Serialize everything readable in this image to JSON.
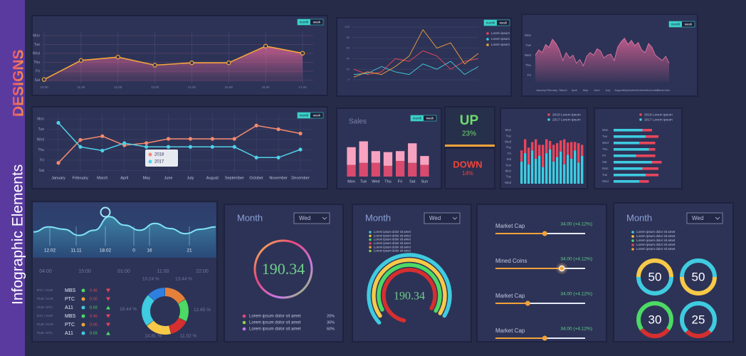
{
  "sidebar": {
    "title": "Infographic Elements",
    "subtitle": "DESIGNS"
  },
  "toggle": [
    "month",
    "week"
  ],
  "weekline": {
    "ylabels": [
      "Mon",
      "Tue",
      "Wed",
      "Thu",
      "Fri",
      "Sat"
    ],
    "xlabels": [
      "10.00",
      "11.00",
      "12.00",
      "13.00",
      "14.00",
      "15.00",
      "16.00",
      "17.00"
    ],
    "values": [
      5,
      45,
      52,
      35,
      40,
      40,
      75,
      60
    ],
    "ylim": [
      0,
      100
    ],
    "color": "#f5a63a"
  },
  "multiline": {
    "ylim": [
      0,
      100
    ],
    "yticks": [
      0,
      20,
      40,
      60,
      80,
      100
    ],
    "series": [
      {
        "name": "Lorem ipsum",
        "color": "#e8465c",
        "values": [
          20,
          10,
          15,
          40,
          35,
          55,
          45,
          20,
          35,
          40
        ]
      },
      {
        "name": "Lorem ipsum",
        "color": "#3fcbe0",
        "values": [
          10,
          12,
          25,
          15,
          10,
          30,
          20,
          35,
          10,
          25
        ]
      },
      {
        "name": "Lorem ipsum",
        "color": "#f2a23a",
        "values": [
          5,
          15,
          10,
          25,
          45,
          95,
          60,
          70,
          30,
          50
        ]
      }
    ]
  },
  "area": {
    "categories": [
      "January",
      "February",
      "March",
      "April",
      "May",
      "June",
      "July",
      "August",
      "September",
      "October",
      "November",
      "December"
    ],
    "ylabels": [
      "Mon",
      "Tue",
      "Wed",
      "Thu",
      "Fri"
    ],
    "ylim": [
      0,
      100
    ],
    "color": "#e879a8",
    "values": [
      50,
      60,
      55,
      70,
      65,
      80,
      72,
      60,
      40,
      55,
      45,
      50,
      35,
      42,
      30,
      48,
      55,
      50,
      62,
      58,
      45,
      50,
      52,
      40,
      65,
      75,
      82,
      70,
      78,
      68,
      74,
      60,
      55,
      72,
      65,
      50,
      45,
      40,
      48,
      35
    ]
  },
  "yearline": {
    "categories": [
      "January",
      "February",
      "March",
      "April",
      "May",
      "June",
      "July",
      "August",
      "September",
      "October",
      "November",
      "December"
    ],
    "ylabels": [
      "Mon",
      "Tue",
      "Wed",
      "Thu",
      "Fri",
      "Sat"
    ],
    "ylim": [
      0,
      100
    ],
    "series": [
      {
        "name": "2018",
        "color": "#f58a6e",
        "values": [
          15,
          58,
          65,
          48,
          52,
          60,
          60,
          60,
          60,
          85,
          78,
          70
        ]
      },
      {
        "name": "2017",
        "color": "#4fd0e8",
        "values": [
          90,
          45,
          38,
          52,
          45,
          45,
          45,
          45,
          45,
          25,
          25,
          40
        ]
      }
    ]
  },
  "sales": {
    "title": "Sales",
    "categories": [
      "Mon",
      "Tue",
      "Wed",
      "Thu",
      "Fri",
      "Sat",
      "Sun"
    ],
    "ylim": [
      0,
      40
    ],
    "series": [
      {
        "color": "#d84a6e",
        "values": [
          12,
          14,
          14,
          11,
          16,
          14,
          12
        ]
      },
      {
        "color": "#f7a3c0",
        "values": [
          18,
          22,
          12,
          14,
          10,
          20,
          9
        ]
      }
    ]
  },
  "up": {
    "label": "UP",
    "value": "23%"
  },
  "down": {
    "label": "DOWN",
    "value": "14%"
  },
  "stacked": {
    "ylabels": [
      "Mon",
      "Tue",
      "Wed",
      "Thu",
      "Fri",
      "Sat",
      "Sun",
      "Mon",
      "Tue",
      "Wed"
    ],
    "ylim": [
      0,
      100
    ],
    "series": [
      {
        "name": "2018 Lorem ipsum",
        "color": "#e8465c",
        "values": [
          20,
          25,
          30,
          15,
          35,
          20,
          40,
          25,
          15,
          30,
          25,
          20,
          45,
          22,
          30,
          15,
          35,
          20
        ]
      },
      {
        "name": "2017 Lorem ipsum",
        "color": "#3fcbe0",
        "values": [
          40,
          55,
          35,
          60,
          45,
          50,
          30,
          55,
          62,
          40,
          48,
          58,
          35,
          52,
          45,
          60,
          38,
          50
        ]
      }
    ]
  },
  "hbars": {
    "ylabels": [
      "Mon",
      "Tue",
      "Wed",
      "Thu",
      "Fri",
      "Sat",
      "Mon",
      "Tue",
      "Wed"
    ],
    "xlim": [
      0,
      100
    ],
    "series": [
      {
        "name": "2018 Lorem ipsum",
        "color": "#e8465c",
        "values": [
          15,
          20,
          25,
          10,
          30,
          15,
          25,
          20,
          15
        ]
      },
      {
        "name": "2017 Lorem ipsum",
        "color": "#3fcbe0",
        "values": [
          45,
          50,
          40,
          55,
          35,
          60,
          45,
          50,
          40
        ]
      }
    ]
  },
  "crypto": {
    "wave": [
      40,
      55,
      48,
      30,
      45,
      85,
      60,
      45,
      65,
      50,
      35,
      48,
      55
    ],
    "ylim": [
      0,
      100
    ],
    "labels": [
      "12.02",
      "11.11",
      "18.02",
      "0",
      "16",
      "21"
    ],
    "times": [
      "04:00",
      "15:00",
      "01:00",
      "11:00",
      "22:00"
    ],
    "table": [
      {
        "pair": "BTC / EUR",
        "code": "MBS",
        "value": "0.46",
        "dot": "#4cd964",
        "trend": "down"
      },
      {
        "pair": "RUB / EUR",
        "code": "PTC",
        "value": "0.00",
        "dot": "#f2a23a",
        "trend": "down"
      },
      {
        "pair": "RUB / BTC",
        "code": "A11",
        "value": "0.03",
        "dot": "#3fcbe0",
        "trend": "up"
      },
      {
        "pair": "BTC / EUR",
        "code": "MBS",
        "value": "0.46",
        "dot": "#4cd964",
        "trend": "down"
      },
      {
        "pair": "RUB / EUR",
        "code": "PTC",
        "value": "0.00",
        "dot": "#f2a23a",
        "trend": "down"
      },
      {
        "pair": "RUB / BTC",
        "code": "A11",
        "value": "0.03",
        "dot": "#3fcbe0",
        "trend": "up"
      }
    ],
    "donut": {
      "values": [
        13.44,
        12.65,
        11.02,
        14.81,
        18.44,
        10.24
      ],
      "value_labels": [
        "13.44 %",
        "12.65 %",
        "11.02 %",
        "14.81 %",
        "18.44 %",
        "10.24 %"
      ],
      "colors": [
        "#e5803a",
        "#4cd964",
        "#d62f2f",
        "#f7c948",
        "#3fcbe0",
        "#2f7fe0"
      ]
    }
  },
  "ring": {
    "title": "Month",
    "select": "Wed",
    "value": "190.34",
    "legend": [
      {
        "label": "Lorem ipsum dolor sit amet",
        "value": "20%",
        "color": "#e8467c"
      },
      {
        "label": "Lorem ipsum dolor sit amet",
        "value": "30%",
        "color": "#8ed24a"
      },
      {
        "label": "Lorem ipsum dolor sit amet",
        "value": "60%",
        "color": "#c87ae8"
      }
    ]
  },
  "arcs": {
    "title": "Month",
    "select": "Wed",
    "value": "190.34",
    "legend": [
      {
        "label": "Lorem ipsum dolor sit amet",
        "color": "#3fcbe0"
      },
      {
        "label": "Lorem ipsum dolor sit amet",
        "color": "#f7c948"
      },
      {
        "label": "Lorem ipsum dolor sit amet",
        "color": "#4cd964"
      },
      {
        "label": "Lorem ipsum dolor sit amet",
        "color": "#e8465c"
      },
      {
        "label": "Lorem ipsum dolor sit amet",
        "color": "#f2a23a"
      },
      {
        "label": "Lorem ipsum dolor sit amet",
        "color": "#8ed24a"
      }
    ],
    "rings": [
      {
        "color": "#3fcbe0",
        "value": 70
      },
      {
        "color": "#f7c948",
        "value": 68
      },
      {
        "color": "#4cd964",
        "value": 66
      },
      {
        "color": "#d62f2f",
        "value": 80
      }
    ]
  },
  "sliders": [
    {
      "label": "Market Cap",
      "value": "34.00 (+4.12%)",
      "position": 55
    },
    {
      "label": "Mined Coins",
      "value": "34.00 (+4.12%)",
      "position": 74
    },
    {
      "label": "Market Cap",
      "value": "34.00 (+4.12%)",
      "position": 36
    },
    {
      "label": "Market Cap",
      "value": "34.00 (+4.12%)",
      "position": 55
    }
  ],
  "gauges": {
    "title": "Month",
    "select": "Wed",
    "legend": [
      {
        "label": "Lorem ipsum dolor sit amet",
        "color": "#3fcbe0"
      },
      {
        "label": "Lorem ipsum dolor sit amet",
        "color": "#f7c948"
      },
      {
        "label": "Lorem ipsum dolor sit amet",
        "color": "#4cd964"
      },
      {
        "label": "Lorem ipsum dolor sit amet",
        "color": "#e8465c"
      },
      {
        "label": "Lorem ipsum dolor sit amet",
        "color": "#f2a23a"
      }
    ],
    "items": [
      {
        "value": 50,
        "color": "#3fcbe0",
        "rest": "#f7c948"
      },
      {
        "value": 50,
        "color": "#f7c948",
        "rest": "#3fcbe0"
      },
      {
        "value": 30,
        "color": "#d62f2f",
        "rest": "#4cd964"
      },
      {
        "value": 25,
        "color": "#d62f2f",
        "rest": "#3fcbe0"
      }
    ]
  }
}
